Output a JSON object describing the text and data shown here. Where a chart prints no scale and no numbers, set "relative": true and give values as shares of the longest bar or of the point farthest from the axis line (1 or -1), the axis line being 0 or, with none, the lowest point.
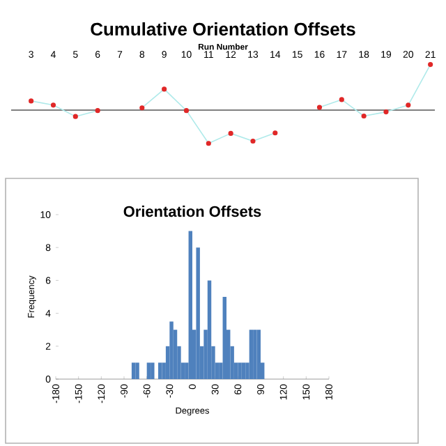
{
  "chart_data": [
    {
      "type": "line",
      "title": "Cumulative Orientation Offsets",
      "xlabel": "Run Number",
      "relative": true,
      "marker": "circle",
      "categories": [
        "3",
        "4",
        "5",
        "6",
        "7",
        "8",
        "9",
        "10",
        "11",
        "12",
        "13",
        "14",
        "15",
        "16",
        "17",
        "18",
        "19",
        "20",
        "21"
      ],
      "series": [
        {
          "color": "#e02828",
          "values": [
            0.2,
            0.11,
            -0.14,
            -0.01,
            null,
            0.05,
            0.46,
            -0.01,
            -0.73,
            -0.51,
            -0.68,
            -0.5,
            null,
            0.06,
            0.23,
            -0.13,
            -0.04,
            0.11,
            1
          ]
        }
      ]
    },
    {
      "type": "histogram",
      "title": "Orientation Offsets",
      "xlabel": "Degrees",
      "ylabel": "Frequency",
      "color": "#4f81bd",
      "bins": [
        -180,
        -175,
        -170,
        -165,
        -160,
        -155,
        -150,
        -145,
        -140,
        -135,
        -130,
        -125,
        -120,
        -115,
        -110,
        -105,
        -100,
        -95,
        -90,
        -85,
        -80,
        -75,
        -70,
        -65,
        -60,
        -55,
        -50,
        -45,
        -40,
        -35,
        -30,
        -25,
        -20,
        -15,
        -10,
        -5,
        0,
        5,
        10,
        15,
        20,
        25,
        30,
        35,
        40,
        45,
        50,
        55,
        60,
        65,
        70,
        75,
        80,
        85,
        90,
        95,
        100,
        105,
        110,
        115,
        120,
        125,
        130,
        135,
        140,
        145,
        150,
        155,
        160,
        165,
        170,
        175,
        180
      ],
      "values": [
        0,
        0,
        0,
        0,
        0,
        0,
        0,
        0,
        0,
        0,
        0,
        0,
        0,
        0,
        0,
        0,
        0,
        0,
        0,
        0,
        1,
        1,
        0,
        0,
        1,
        1,
        0,
        1,
        1,
        2,
        3.5,
        3,
        2,
        1,
        1,
        9,
        3,
        8,
        2,
        3,
        6,
        2,
        1,
        1,
        5,
        3,
        2,
        1,
        1,
        1,
        1,
        3,
        3,
        3,
        1,
        0,
        0,
        0,
        0,
        0,
        0,
        0,
        0,
        0,
        0,
        0,
        0,
        0,
        0,
        0,
        0,
        0
      ],
      "xlim": [
        -180,
        180
      ],
      "xticks": [
        -180,
        -150,
        -120,
        -90,
        -60,
        -30,
        0,
        30,
        60,
        90,
        120,
        150,
        180
      ],
      "ylim": [
        0,
        10
      ],
      "yticks": [
        0,
        2,
        4,
        6,
        8,
        10
      ]
    }
  ]
}
